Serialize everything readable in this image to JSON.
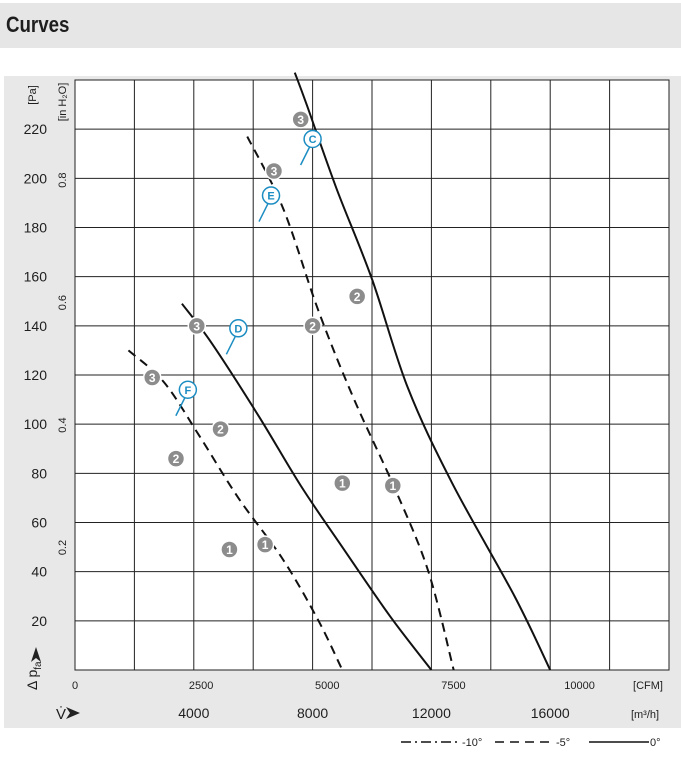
{
  "header": {
    "title": "Curves"
  },
  "chart_data": {
    "type": "line",
    "y_axis": {
      "unit_label": "[Pa]",
      "secondary_unit_label": "[in H₂O]",
      "label_symbol": "Δ p",
      "label_subscript": "fa",
      "range": [
        0,
        240
      ],
      "tick_labels": [
        "20",
        "40",
        "60",
        "80",
        "100",
        "120",
        "140",
        "160",
        "180",
        "200",
        "220"
      ],
      "secondary_tick_labels": [
        "0.2",
        "0.4",
        "0.6",
        "0.8"
      ]
    },
    "x_axis": {
      "unit_label": "[CFM]",
      "secondary_unit_label": "[m³/h]",
      "label_symbol": "V̇",
      "range_m3h": [
        0,
        20000
      ],
      "tick_labels": [
        "0",
        "2500",
        "5000",
        "7500",
        "10000"
      ],
      "secondary_tick_labels": [
        "4000",
        "8000",
        "12000",
        "16000"
      ]
    },
    "legend": [
      {
        "name": "-10°",
        "dash": "dashdot"
      },
      {
        "name": "-5°",
        "dash": "dash"
      },
      {
        "name": "0°",
        "dash": "solid"
      }
    ],
    "series": [
      {
        "name": "C",
        "dash": "solid",
        "points": [
          [
            7400,
            243
          ],
          [
            7800,
            230
          ],
          [
            8800,
            196
          ],
          [
            10000,
            159
          ],
          [
            11200,
            115
          ],
          [
            12700,
            76
          ],
          [
            14800,
            30
          ],
          [
            16000,
            0
          ]
        ]
      },
      {
        "name": "E",
        "dash": "dash",
        "points": [
          [
            5800,
            217
          ],
          [
            7000,
            188
          ],
          [
            8200,
            146
          ],
          [
            9400,
            110
          ],
          [
            10800,
            73
          ],
          [
            11900,
            40
          ],
          [
            12750,
            0
          ]
        ]
      },
      {
        "name": "D",
        "dash": "solid",
        "points": [
          [
            3600,
            149
          ],
          [
            4600,
            133
          ],
          [
            6200,
            103
          ],
          [
            7600,
            75
          ],
          [
            9000,
            50
          ],
          [
            10600,
            22
          ],
          [
            12000,
            0
          ]
        ]
      },
      {
        "name": "F",
        "dash": "dash",
        "points": [
          [
            1800,
            130
          ],
          [
            3000,
            117
          ],
          [
            4200,
            95
          ],
          [
            5500,
            70
          ],
          [
            7000,
            45
          ],
          [
            8200,
            20
          ],
          [
            9000,
            0
          ]
        ]
      }
    ],
    "markers": [
      {
        "label": "3",
        "x": 7600,
        "y": 224
      },
      {
        "label": "2",
        "x": 9500,
        "y": 152
      },
      {
        "label": "1",
        "x": 10700,
        "y": 75
      },
      {
        "label": "3",
        "x": 6700,
        "y": 203
      },
      {
        "label": "2",
        "x": 8000,
        "y": 140
      },
      {
        "label": "1",
        "x": 9000,
        "y": 76
      },
      {
        "label": "3",
        "x": 4100,
        "y": 140
      },
      {
        "label": "2",
        "x": 4900,
        "y": 98
      },
      {
        "label": "1",
        "x": 6400,
        "y": 51
      },
      {
        "label": "3",
        "x": 2600,
        "y": 119
      },
      {
        "label": "2",
        "x": 3400,
        "y": 86
      },
      {
        "label": "1",
        "x": 5200,
        "y": 49
      }
    ],
    "curve_labels": [
      {
        "label": "C",
        "x": 8000,
        "y": 216
      },
      {
        "label": "E",
        "x": 6600,
        "y": 193
      },
      {
        "label": "D",
        "x": 5500,
        "y": 139
      },
      {
        "label": "F",
        "x": 3800,
        "y": 114
      }
    ],
    "grid": true,
    "legend_position": "bottom-right"
  }
}
